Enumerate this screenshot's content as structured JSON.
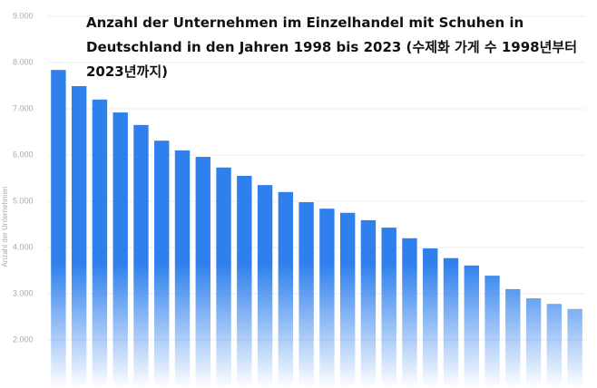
{
  "chart_data": {
    "type": "bar",
    "title": "Anzahl der Unternehmen im Einzelhandel mit Schuhen in Deutschland in den Jahren 1998 bis 2023  (수제화 가게 수 1998년부터 2023년까지)",
    "y_label": "Anzahl der Unternehmen",
    "categories": [
      null,
      null,
      null,
      null,
      null,
      null,
      null,
      null,
      null,
      null,
      null,
      null,
      null,
      null,
      null,
      null,
      null,
      null,
      null,
      null,
      null,
      null,
      null,
      null,
      null,
      null
    ],
    "values": [
      7840,
      7490,
      7200,
      6920,
      6650,
      6310,
      6100,
      5960,
      5730,
      5550,
      5350,
      5200,
      4980,
      4840,
      4750,
      4590,
      4430,
      4200,
      3980,
      3770,
      3610,
      3390,
      3100,
      2900,
      2780,
      2670
    ],
    "color": "#2f80ed",
    "ylim": [
      1000,
      9000
    ],
    "yticks": [
      {
        "value": 2000,
        "label": "2.000"
      },
      {
        "value": 3000,
        "label": "3.000"
      },
      {
        "value": 4000,
        "label": "4.000"
      },
      {
        "value": 5000,
        "label": "5.000"
      },
      {
        "value": 6000,
        "label": "6.000"
      },
      {
        "value": 7000,
        "label": "7.000"
      },
      {
        "value": 8000,
        "label": "8.000"
      },
      {
        "value": 9000,
        "label": "9.000"
      }
    ],
    "grid": true
  }
}
